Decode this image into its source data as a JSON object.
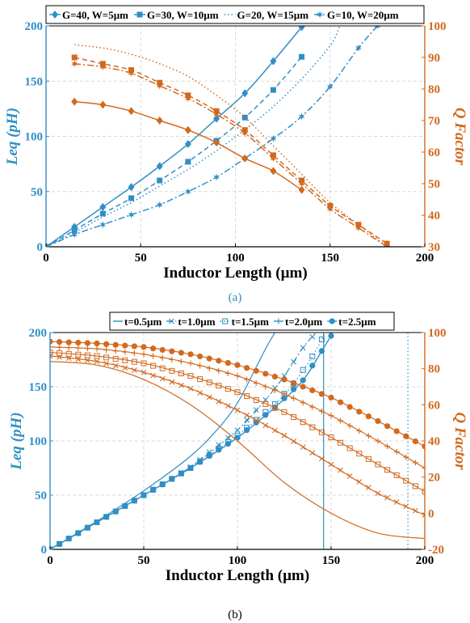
{
  "figure": {
    "colors": {
      "leq": "#2f8fc5",
      "q": "#d2691e",
      "grid": "#d9d9d9",
      "axis": "#000000"
    }
  },
  "chart_data": [
    {
      "panel_label": "(a)",
      "type": "line",
      "xlabel": "Inductor Length (µm)",
      "ylabel": "Leq (pH)",
      "y2label": "Q Factor",
      "xlim": [
        0,
        200
      ],
      "ylim": [
        0,
        200
      ],
      "y2lim": [
        30,
        100
      ],
      "xticks": [
        "0",
        "50",
        "100",
        "150",
        "200"
      ],
      "yticks": [
        "0",
        "50",
        "100",
        "150",
        "200"
      ],
      "y2ticks": [
        "30",
        "40",
        "50",
        "60",
        "70",
        "80",
        "90",
        "100"
      ],
      "grid": true,
      "legend": {
        "placement": "top",
        "entries": [
          "G=40, W=5µm",
          "G=30, W=10µm",
          "G=20, W=15µm",
          "G=10, W=20µm"
        ]
      },
      "series": [
        {
          "name": "G=40, W=5µm",
          "axis": "left",
          "style": "solid",
          "marker": "diamond",
          "x": [
            0,
            15,
            30,
            45,
            60,
            75,
            90,
            105,
            120,
            135
          ],
          "y": [
            0,
            18,
            36,
            54,
            73,
            93,
            116,
            139,
            168,
            199
          ]
        },
        {
          "name": "G=30, W=10µm",
          "axis": "left",
          "style": "dashed",
          "marker": "square",
          "x": [
            0,
            15,
            30,
            45,
            60,
            75,
            90,
            105,
            120,
            135
          ],
          "y": [
            0,
            15,
            30,
            44,
            60,
            77,
            96,
            117,
            142,
            172
          ]
        },
        {
          "name": "G=20, W=15µm",
          "axis": "left",
          "style": "dotted",
          "marker": "none",
          "x": [
            0,
            15,
            30,
            45,
            60,
            75,
            90,
            105,
            120,
            135,
            150,
            155
          ],
          "y": [
            0,
            13,
            27,
            40,
            55,
            70,
            87,
            106,
            127,
            152,
            182,
            199
          ]
        },
        {
          "name": "G=10, W=20µm",
          "axis": "left",
          "style": "dashdot",
          "marker": "star",
          "x": [
            0,
            15,
            30,
            45,
            60,
            75,
            90,
            105,
            120,
            135,
            150,
            165,
            175
          ],
          "y": [
            0,
            11,
            20,
            29,
            38,
            50,
            63,
            80,
            98,
            118,
            145,
            180,
            200
          ]
        },
        {
          "name": "G=40, W=5µm",
          "axis": "right",
          "style": "solid",
          "marker": "diamond",
          "x": [
            15,
            30,
            45,
            60,
            75,
            90,
            105,
            120,
            135
          ],
          "y": [
            76,
            75,
            73,
            70,
            67,
            63,
            58,
            54,
            48
          ]
        },
        {
          "name": "G=30, W=10µm",
          "axis": "right",
          "style": "dashed",
          "marker": "square",
          "x": [
            15,
            30,
            45,
            60,
            75,
            90,
            105,
            120,
            135,
            150,
            165,
            180
          ],
          "y": [
            90,
            88,
            86,
            82,
            78,
            73,
            67,
            59,
            51,
            43,
            37,
            31
          ]
        },
        {
          "name": "G=20, W=15µm",
          "axis": "right",
          "style": "dotted",
          "marker": "none",
          "x": [
            15,
            30,
            45,
            60,
            75,
            90,
            105,
            120,
            135,
            150,
            165,
            180
          ],
          "y": [
            94,
            93,
            91,
            88,
            84,
            78,
            71,
            62,
            53,
            44,
            37,
            30
          ]
        },
        {
          "name": "G=10, W=20µm",
          "axis": "right",
          "style": "dashdot",
          "marker": "star",
          "x": [
            15,
            30,
            45,
            60,
            75,
            90,
            105,
            120,
            135,
            150,
            165,
            180
          ],
          "y": [
            88,
            87,
            85,
            81,
            77,
            72,
            66,
            58,
            50,
            42,
            36,
            30
          ]
        }
      ]
    },
    {
      "panel_label": "(b)",
      "type": "line",
      "xlabel": "Inductor Length (µm)",
      "ylabel": "Leq (pH)",
      "y2label": "Q Factor",
      "xlim": [
        0,
        200
      ],
      "ylim": [
        0,
        200
      ],
      "y2lim": [
        -20,
        100
      ],
      "xticks": [
        "0",
        "50",
        "100",
        "150",
        "200"
      ],
      "yticks": [
        "0",
        "50",
        "100",
        "150",
        "200"
      ],
      "y2ticks": [
        "-20",
        "0",
        "20",
        "40",
        "60",
        "80",
        "100"
      ],
      "grid": true,
      "legend": {
        "placement": "top",
        "entries": [
          "t=0.5µm",
          "t=1.0µm",
          "t=1.5µm",
          "t=2.0µm",
          "t=2.5µm"
        ]
      },
      "series": [
        {
          "name": "t=0.5µm",
          "axis": "left",
          "style": "solid",
          "marker": "none",
          "x": [
            0,
            25,
            50,
            75,
            90,
            100,
            110,
            115,
            120
          ],
          "y": [
            0,
            26,
            54,
            86,
            112,
            135,
            168,
            185,
            200
          ],
          "vline_x": 146
        },
        {
          "name": "t=1.0µm",
          "axis": "left",
          "style": "dashdot",
          "marker": "x",
          "x": [
            0,
            25,
            50,
            75,
            100,
            115,
            125,
            135,
            142
          ],
          "y": [
            0,
            25,
            50,
            76,
            110,
            138,
            160,
            186,
            200
          ]
        },
        {
          "name": "t=1.5µm",
          "axis": "left",
          "style": "dotted",
          "marker": "square",
          "x": [
            0,
            25,
            50,
            75,
            100,
            120,
            130,
            140,
            147
          ],
          "y": [
            0,
            25,
            50,
            75,
            105,
            134,
            153,
            178,
            200
          ],
          "vline_x": 191
        },
        {
          "name": "t=2.0µm",
          "axis": "left",
          "style": "solid",
          "marker": "plus",
          "x": [
            0,
            25,
            50,
            75,
            100,
            120,
            135,
            145,
            150
          ],
          "y": [
            0,
            25,
            50,
            75,
            103,
            131,
            156,
            183,
            197
          ]
        },
        {
          "name": "t=2.5µm",
          "axis": "left",
          "style": "solid",
          "marker": "circle",
          "x": [
            0,
            25,
            50,
            75,
            100,
            120,
            135,
            145,
            150
          ],
          "y": [
            0,
            25,
            50,
            75,
            103,
            131,
            156,
            183,
            197
          ]
        },
        {
          "name": "t=0.5µm",
          "axis": "right",
          "style": "solid",
          "marker": "none",
          "x": [
            0,
            25,
            50,
            75,
            100,
            125,
            150,
            175,
            200
          ],
          "y": [
            84,
            82,
            74,
            60,
            40,
            17,
            0,
            -11,
            -14
          ]
        },
        {
          "name": "t=1.0µm",
          "axis": "right",
          "style": "solid",
          "marker": "x",
          "x": [
            0,
            25,
            50,
            75,
            100,
            125,
            150,
            175,
            200
          ],
          "y": [
            87,
            84,
            78,
            69,
            57,
            43,
            27,
            11,
            -1
          ]
        },
        {
          "name": "t=1.5µm",
          "axis": "right",
          "style": "solid",
          "marker": "square",
          "x": [
            0,
            25,
            50,
            75,
            100,
            125,
            150,
            175,
            200
          ],
          "y": [
            89,
            87,
            83,
            76,
            67,
            56,
            42,
            27,
            12
          ]
        },
        {
          "name": "t=2.0µm",
          "axis": "right",
          "style": "solid",
          "marker": "plus",
          "x": [
            0,
            25,
            50,
            75,
            100,
            125,
            150,
            175,
            200
          ],
          "y": [
            92,
            91,
            88,
            83,
            76,
            66,
            54,
            40,
            25
          ]
        },
        {
          "name": "t=2.5µm",
          "axis": "right",
          "style": "solid",
          "marker": "circle",
          "x": [
            0,
            25,
            50,
            75,
            100,
            125,
            150,
            175,
            200
          ],
          "y": [
            95,
            94,
            92,
            88,
            82,
            74,
            64,
            51,
            37
          ]
        }
      ]
    }
  ]
}
